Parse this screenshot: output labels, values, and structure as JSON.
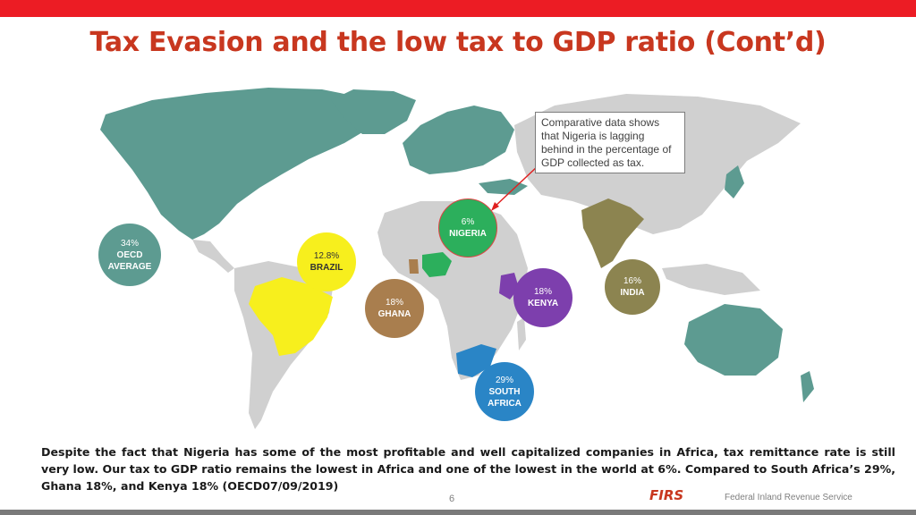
{
  "slide": {
    "title": "Tax Evasion and the low tax to GDP ratio (Cont’d)",
    "callout": "Comparative data shows that Nigeria is lagging behind in the percentage of GDP collected as tax.",
    "paragraph": "Despite the fact that Nigeria has some of the most profitable and well capitalized companies in Africa, tax remittance rate is still very low. Our tax to GDP ratio remains the lowest in Africa and one of the lowest in the world at 6%. Compared to South Africa’s 29%, Ghana 18%, and Kenya 18% (OECD07/09/2019)",
    "page_number": "6",
    "logo_text": "FIRS",
    "footer_text": "Federal Inland Revenue Service"
  },
  "bubbles": {
    "oecd": {
      "pct": "34%",
      "name_line1": "OECD",
      "name_line2": "AVERAGE"
    },
    "brazil": {
      "pct": "12.8%",
      "name": "BRAZIL"
    },
    "ghana": {
      "pct": "18%",
      "name": "GHANA"
    },
    "nigeria": {
      "pct": "6%",
      "name": "NIGERIA"
    },
    "kenya": {
      "pct": "18%",
      "name": "KENYA"
    },
    "india": {
      "pct": "16%",
      "name": "INDIA"
    },
    "south_africa": {
      "pct": "29%",
      "name_line1": "SOUTH",
      "name_line2": "AFRICA"
    }
  },
  "colors": {
    "accent_red": "#ec1c24",
    "title": "#c8371f",
    "map_grey": "#d0d0d0",
    "map_teal": "#5d9b91",
    "brazil": "#f7ef1d",
    "nigeria": "#2caf5c",
    "ghana": "#a97e4e",
    "kenya": "#7d3fad",
    "india": "#8c8450",
    "south_africa": "#2a85c6"
  }
}
